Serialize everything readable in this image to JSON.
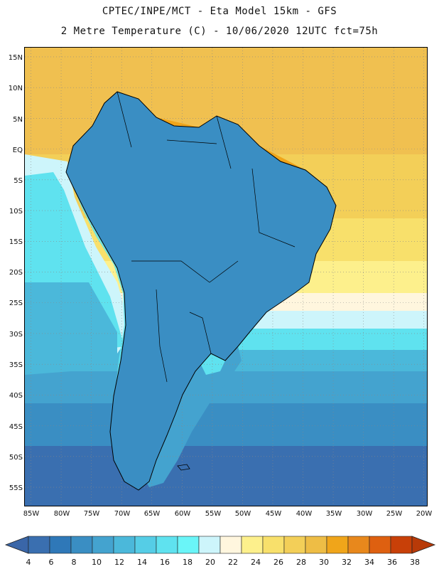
{
  "header": {
    "line1": "CPTEC/INPE/MCT -  Eta Model 15km - GFS",
    "line2": "2 Metre Temperature (C) - 10/06/2020 12UTC fct=75h"
  },
  "map": {
    "lat_labels": [
      "15N",
      "10N",
      "5N",
      "EQ",
      "5S",
      "10S",
      "15S",
      "20S",
      "25S",
      "30S",
      "35S",
      "40S",
      "45S",
      "50S",
      "55S"
    ],
    "lon_labels": [
      "85W",
      "80W",
      "75W",
      "70W",
      "65W",
      "60W",
      "55W",
      "50W",
      "45W",
      "40W",
      "35W",
      "30W",
      "25W",
      "20W"
    ],
    "lat_range": [
      -58,
      16.5
    ],
    "lon_range": [
      -86,
      -19.5
    ]
  },
  "colorbar": {
    "labels": [
      "4",
      "6",
      "8",
      "10",
      "12",
      "14",
      "16",
      "18",
      "20",
      "22",
      "24",
      "26",
      "28",
      "30",
      "32",
      "34",
      "36",
      "38"
    ],
    "colors": [
      "#3a6fb0",
      "#2f78b8",
      "#3a8ec3",
      "#44a3cf",
      "#4bb8da",
      "#55cde6",
      "#5fe2ef",
      "#6af5f8",
      "#cdf5fb",
      "#fff6de",
      "#fdf08c",
      "#f8e06b",
      "#f3cf58",
      "#eebd45",
      "#f0a51a",
      "#e8881c",
      "#de6010",
      "#c84008"
    ],
    "low_arrow_color": "#3a66a8",
    "high_arrow_color": "#b83a08"
  }
}
